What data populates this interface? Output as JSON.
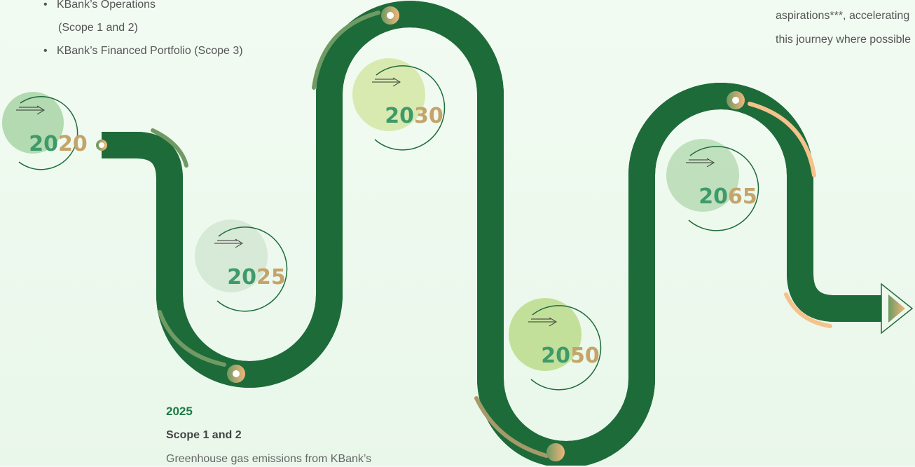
{
  "bullets": [
    {
      "lines": [
        "KBank’s Operations",
        "(Scope 1 and 2)"
      ]
    },
    {
      "lines": [
        "KBank’s Financed Portfolio (Scope 3)"
      ]
    }
  ],
  "note": {
    "lines": [
      "aspirations***, accelerating",
      "this journey where possible"
    ]
  },
  "milestones": [
    {
      "year": "2020"
    },
    {
      "year": "2025"
    },
    {
      "year": "2030"
    },
    {
      "year": "2050"
    },
    {
      "year": "2065"
    }
  ],
  "detail": {
    "year": "2025",
    "heading": "Scope 1 and 2",
    "text": "Greenhouse gas emissions from KBank’s"
  }
}
